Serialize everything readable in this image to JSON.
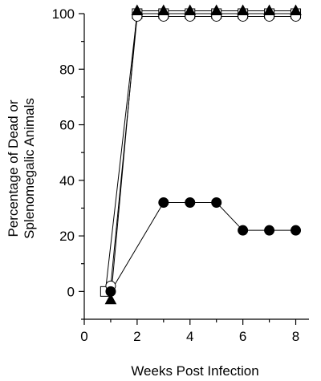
{
  "chart_data": {
    "type": "line",
    "title": "",
    "xlabel": "Weeks Post Infection",
    "ylabel_lines": [
      "Percentage of Dead or",
      "Splenomegalic Animals"
    ],
    "xlim": [
      0,
      8.5
    ],
    "ylim": [
      -10,
      100
    ],
    "x_ticks": [
      0,
      2,
      4,
      6,
      8
    ],
    "y_ticks": [
      0,
      20,
      40,
      60,
      80,
      100
    ],
    "x_tick_labels": [
      "0",
      "2",
      "4",
      "6",
      "8"
    ],
    "y_tick_labels": [
      "0",
      "20",
      "40",
      "60",
      "80",
      "100"
    ],
    "grid": false,
    "legend": "none",
    "series": [
      {
        "marker": "open-square",
        "color": "#000000",
        "x": [
          0.8,
          2,
          3,
          4,
          5,
          6,
          7,
          8
        ],
        "y": [
          0,
          100,
          100,
          100,
          100,
          100,
          100,
          100
        ]
      },
      {
        "marker": "filled-triangle",
        "color": "#000000",
        "x": [
          1,
          2,
          3,
          4,
          5,
          6,
          7,
          8
        ],
        "y": [
          -3,
          101,
          101,
          101,
          101,
          101,
          101,
          101
        ]
      },
      {
        "marker": "open-circle",
        "color": "#000000",
        "x": [
          1,
          2,
          3,
          4,
          5,
          6,
          7,
          8
        ],
        "y": [
          2,
          99,
          99,
          99,
          99,
          99,
          99,
          99
        ]
      },
      {
        "marker": "filled-circle",
        "color": "#000000",
        "x": [
          1,
          3,
          4,
          5,
          6,
          7,
          8
        ],
        "y": [
          0,
          32,
          32,
          32,
          22,
          22,
          22
        ]
      }
    ]
  }
}
